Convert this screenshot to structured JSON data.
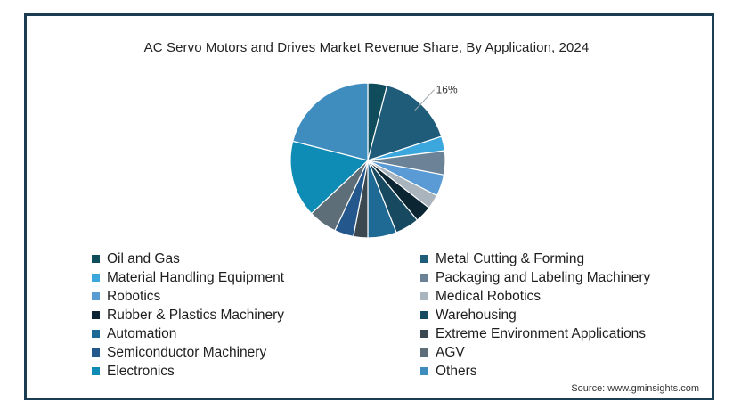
{
  "chart_data": {
    "type": "pie",
    "title": "AC Servo Motors and Drives Market Revenue Share, By Application, 2024",
    "legend_position": "bottom",
    "slices": [
      {
        "name": "Oil and Gas",
        "value": 4,
        "color": "#0f4c5c"
      },
      {
        "name": "Metal Cutting & Forming",
        "value": 16,
        "color": "#1f5c7a",
        "label": "16%"
      },
      {
        "name": "Material Handling Equipment",
        "value": 3,
        "color": "#3ba7dd"
      },
      {
        "name": "Packaging and Labeling Machinery",
        "value": 5,
        "color": "#6c8296"
      },
      {
        "name": "Robotics",
        "value": 4.5,
        "color": "#5a9bd5"
      },
      {
        "name": "Medical Robotics",
        "value": 3,
        "color": "#a9b4bd"
      },
      {
        "name": "Rubber & Plastics Machinery",
        "value": 3.5,
        "color": "#0c2533"
      },
      {
        "name": "Warehousing",
        "value": 5,
        "color": "#174a61"
      },
      {
        "name": "Automation",
        "value": 6,
        "color": "#1f6a94"
      },
      {
        "name": "Extreme Environment Applications",
        "value": 3,
        "color": "#3c4850"
      },
      {
        "name": "Semiconductor Machinery",
        "value": 4,
        "color": "#24578b"
      },
      {
        "name": "AGV",
        "value": 6,
        "color": "#5e6e78"
      },
      {
        "name": "Electronics",
        "value": 16,
        "color": "#0f8cb5"
      },
      {
        "name": "Others",
        "value": 21,
        "color": "#3f8dbf"
      }
    ]
  },
  "source": "Source: www.gminsights.com"
}
